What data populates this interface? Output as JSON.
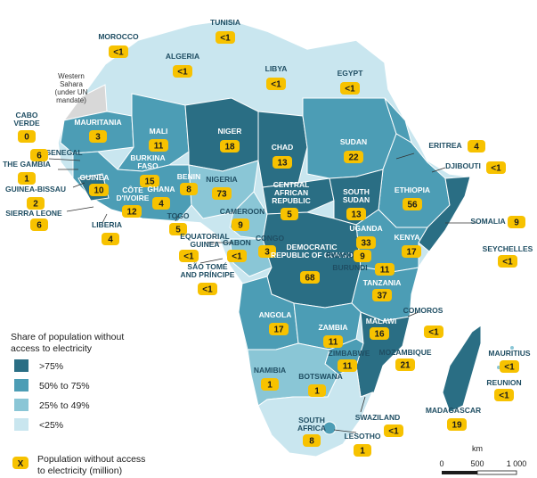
{
  "colors": {
    "over75": "#2a6e84",
    "50to75": "#4c9db5",
    "25to49": "#8ac6d6",
    "under25": "#c9e6ef",
    "badge": "#f7c200",
    "other": "#d8d8d8"
  },
  "legend": {
    "title_line1": "Share of population without",
    "title_line2": "access to electricity",
    "classes": [
      {
        "label": ">75%",
        "color_key": "over75"
      },
      {
        "label": "50% to 75%",
        "color_key": "50to75"
      },
      {
        "label": "25% to 49%",
        "color_key": "25to49"
      },
      {
        "label": "<25%",
        "color_key": "under25"
      }
    ],
    "badge_symbol": "X",
    "badge_line1": "Population without access",
    "badge_line2": "to electricity (million)"
  },
  "scale": {
    "unit": "km",
    "labels": [
      "0",
      "500",
      "1 000"
    ]
  },
  "western_sahara": [
    "Western",
    "Sahara",
    "(under UN",
    "mandate)"
  ],
  "countries": [
    {
      "name": "TUNISIA",
      "value": "<1"
    },
    {
      "name": "MOROCCO",
      "value": "<1"
    },
    {
      "name": "ALGERIA",
      "value": "<1"
    },
    {
      "name": "LIBYA",
      "value": "<1"
    },
    {
      "name": "EGYPT",
      "value": "<1"
    },
    {
      "name": "CABO VERDE",
      "value": "0"
    },
    {
      "name": "MAURITANIA",
      "value": "3"
    },
    {
      "name": "MALI",
      "value": "11"
    },
    {
      "name": "NIGER",
      "value": "18"
    },
    {
      "name": "CHAD",
      "value": "13"
    },
    {
      "name": "SUDAN",
      "value": "22"
    },
    {
      "name": "ERITREA",
      "value": "4"
    },
    {
      "name": "SENEGAL",
      "value": "6"
    },
    {
      "name": "THE GAMBIA",
      "value": "1"
    },
    {
      "name": "GUINEA-BISSAU",
      "value": "2"
    },
    {
      "name": "GUINEA",
      "value": "10"
    },
    {
      "name": "SIERRA LEONE",
      "value": "6"
    },
    {
      "name": "LIBERIA",
      "value": "4"
    },
    {
      "name": "BURKINA FASO",
      "value": "15"
    },
    {
      "name": "CÔTE D'IVOIRE",
      "value": "12"
    },
    {
      "name": "GHANA",
      "value": "4"
    },
    {
      "name": "TOGO",
      "value": "5"
    },
    {
      "name": "BENIN",
      "value": "8"
    },
    {
      "name": "NIGERIA",
      "value": "73"
    },
    {
      "name": "CENTRAL AFRICAN REPUBLIC",
      "value": "5"
    },
    {
      "name": "SOUTH SUDAN",
      "value": "13"
    },
    {
      "name": "DJIBOUTI",
      "value": "<1"
    },
    {
      "name": "ETHIOPIA",
      "value": "56"
    },
    {
      "name": "SOMALIA",
      "value": "9"
    },
    {
      "name": "CAMEROON",
      "value": "9"
    },
    {
      "name": "EQUATORIAL GUINEA",
      "value": "<1"
    },
    {
      "name": "GABON",
      "value": "<1"
    },
    {
      "name": "CONGO",
      "value": "3"
    },
    {
      "name": "SÃO TOMÉ AND PRÍNCIPE",
      "value": "<1"
    },
    {
      "name": "DEMOCRATIC REPUBLIC OF CONGO",
      "value": "68"
    },
    {
      "name": "UGANDA",
      "value": "33"
    },
    {
      "name": "KENYA",
      "value": "17"
    },
    {
      "name": "RWANDA",
      "value": "9"
    },
    {
      "name": "BURUNDI",
      "value": "11"
    },
    {
      "name": "SEYCHELLES",
      "value": "<1"
    },
    {
      "name": "TANZANIA",
      "value": "37"
    },
    {
      "name": "ANGOLA",
      "value": "17"
    },
    {
      "name": "ZAMBIA",
      "value": "11"
    },
    {
      "name": "MALAWI",
      "value": "16"
    },
    {
      "name": "COMOROS",
      "value": "<1"
    },
    {
      "name": "MOZAMBIQUE",
      "value": "21"
    },
    {
      "name": "ZIMBABWE",
      "value": "11"
    },
    {
      "name": "NAMIBIA",
      "value": "1"
    },
    {
      "name": "BOTSWANA",
      "value": "1"
    },
    {
      "name": "MAURITIUS",
      "value": "<1"
    },
    {
      "name": "REUNION",
      "value": "<1"
    },
    {
      "name": "SWAZILAND",
      "value": "<1"
    },
    {
      "name": "MADAGASCAR",
      "value": "19"
    },
    {
      "name": "SOUTH AFRICA",
      "value": "8"
    },
    {
      "name": "LESOTHO",
      "value": "1"
    }
  ]
}
